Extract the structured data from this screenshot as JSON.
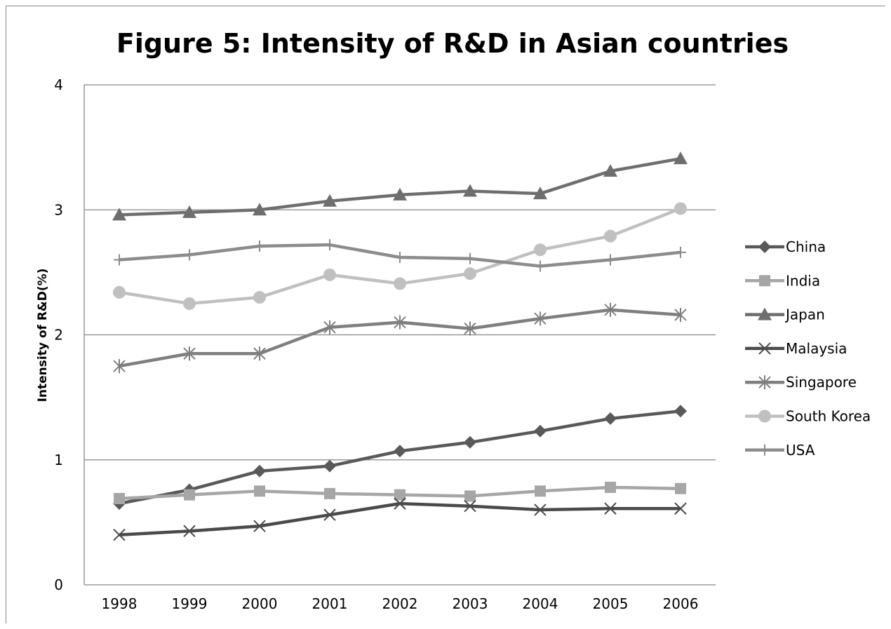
{
  "chart_data": {
    "type": "line",
    "title": "Figure 5: Intensity of R&D in Asian countries",
    "xlabel": "",
    "ylabel": "Intensity of R&D(%)",
    "categories": [
      "1998",
      "1999",
      "2000",
      "2001",
      "2002",
      "2003",
      "2004",
      "2005",
      "2006"
    ],
    "ylim": [
      0,
      4
    ],
    "yticks": [
      "0",
      "1",
      "2",
      "3",
      "4"
    ],
    "grid": "horizontal",
    "legend_position": "right",
    "series": [
      {
        "name": "China",
        "marker": "diamond",
        "color": "#595959",
        "values": [
          0.65,
          0.76,
          0.91,
          0.95,
          1.07,
          1.14,
          1.23,
          1.33,
          1.39
        ]
      },
      {
        "name": "India",
        "marker": "square",
        "color": "#a6a6a6",
        "values": [
          0.69,
          0.72,
          0.75,
          0.73,
          0.72,
          0.71,
          0.75,
          0.78,
          0.77
        ]
      },
      {
        "name": "Japan",
        "marker": "triangle",
        "color": "#6e6e6e",
        "values": [
          2.96,
          2.98,
          3.0,
          3.07,
          3.12,
          3.15,
          3.13,
          3.31,
          3.41
        ]
      },
      {
        "name": "Malaysia",
        "marker": "x",
        "color": "#4a4a4a",
        "values": [
          0.4,
          0.43,
          0.47,
          0.56,
          0.65,
          0.63,
          0.6,
          0.61,
          0.61
        ]
      },
      {
        "name": "Singapore",
        "marker": "star",
        "color": "#7f7f7f",
        "values": [
          1.75,
          1.85,
          1.85,
          2.06,
          2.1,
          2.05,
          2.13,
          2.2,
          2.16
        ]
      },
      {
        "name": "South Korea",
        "marker": "circle",
        "color": "#c0c0c0",
        "values": [
          2.34,
          2.25,
          2.3,
          2.48,
          2.41,
          2.49,
          2.68,
          2.79,
          3.01
        ]
      },
      {
        "name": "USA",
        "marker": "plus",
        "color": "#8c8c8c",
        "values": [
          2.6,
          2.64,
          2.71,
          2.72,
          2.62,
          2.61,
          2.55,
          2.6,
          2.66
        ]
      }
    ]
  }
}
